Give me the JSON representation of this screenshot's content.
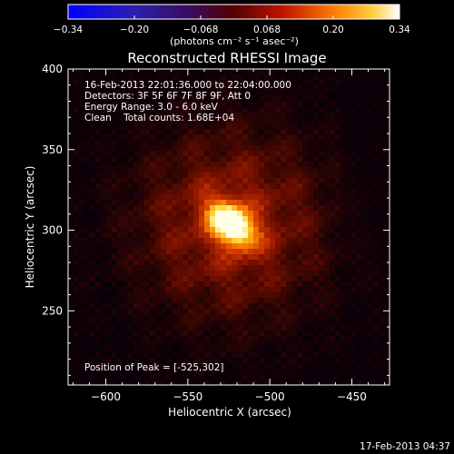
{
  "colorbar": {
    "tick_labels": [
      "-0.34",
      "-0.20",
      "-0.068",
      "0.068",
      "0.20",
      "0.34"
    ],
    "unit_label": "(photons cm⁻² s⁻¹ asec⁻²)"
  },
  "image": {
    "title": "Reconstructed RHESSI Image",
    "annotations": [
      "16-Feb-2013 22:01:36.000 to 22:04:00.000",
      "Detectors: 3F 5F 6F 7F 8F 9F, Att 0",
      "Energy Range: 3.0 - 6.0 keV",
      "Clean    Total counts: 1.68E+04"
    ],
    "peak_label": "Position of Peak = [-525,302]",
    "x_axis": {
      "label": "Heliocentric X (arcsec)",
      "ticks": [
        -600,
        -550,
        -500,
        -450
      ],
      "tick_labels": [
        "−600",
        "−550",
        "−500",
        "−450"
      ],
      "range": [
        -623,
        -427
      ]
    },
    "y_axis": {
      "label": "Heliocentric Y (arcsec)",
      "ticks": [
        250,
        300,
        350,
        400
      ],
      "tick_labels": [
        "250",
        "300",
        "350",
        "400"
      ],
      "range": [
        204,
        400
      ]
    },
    "peak": {
      "x": -525,
      "y": 302
    }
  },
  "footer": {
    "timestamp": "17-Feb-2013 04:37"
  },
  "colors": {
    "background": "#000000",
    "colormap": [
      "#0000ff",
      "#2020a0",
      "#300030",
      "#700000",
      "#c00000",
      "#ff6000",
      "#ffc000",
      "#ffffff"
    ]
  }
}
